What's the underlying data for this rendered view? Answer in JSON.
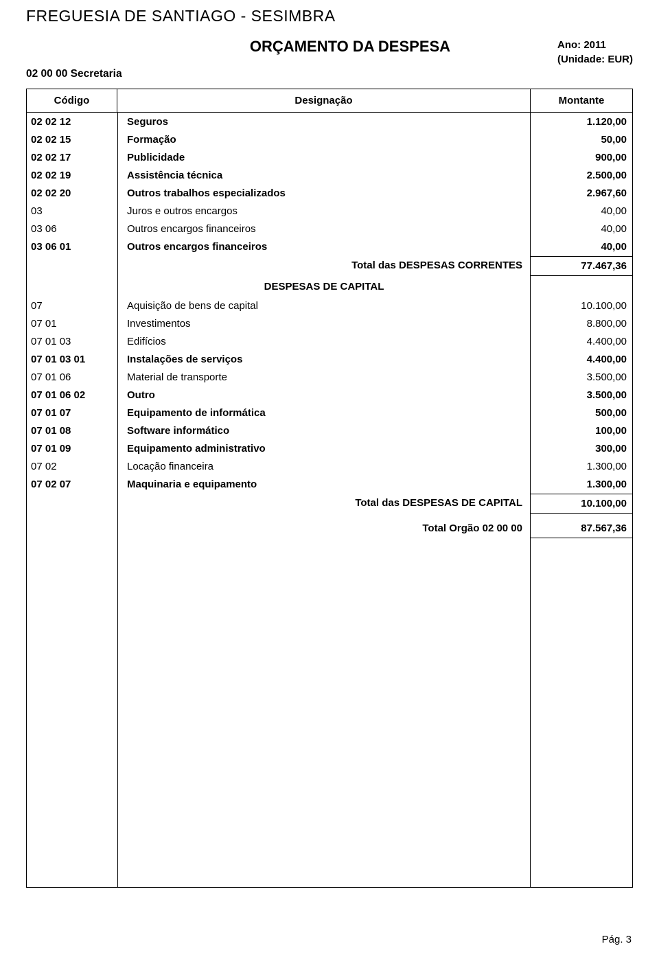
{
  "entity": "FREGUESIA DE SANTIAGO - SESIMBRA",
  "doc_title": "ORÇAMENTO DA DESPESA",
  "year_line": "Ano: 2011",
  "unit_line": "(Unidade: EUR)",
  "org_name": "02 00 00 Secretaria",
  "headers": {
    "code": "Código",
    "desc": "Designação",
    "amount": "Montante"
  },
  "rows": [
    {
      "code": "02 02 12",
      "desc": "Seguros",
      "amount": "1.120,00",
      "bold": true
    },
    {
      "code": "02 02 15",
      "desc": "Formação",
      "amount": "50,00",
      "bold": true
    },
    {
      "code": "02 02 17",
      "desc": "Publicidade",
      "amount": "900,00",
      "bold": true
    },
    {
      "code": "02 02 19",
      "desc": "Assistência técnica",
      "amount": "2.500,00",
      "bold": true
    },
    {
      "code": "02 02 20",
      "desc": "Outros trabalhos especializados",
      "amount": "2.967,60",
      "bold": true
    },
    {
      "code": "03",
      "desc": "Juros e outros encargos",
      "amount": "40,00",
      "bold": false
    },
    {
      "code": "03 06",
      "desc": "Outros encargos financeiros",
      "amount": "40,00",
      "bold": false
    },
    {
      "code": "03 06 01",
      "desc": "Outros encargos financeiros",
      "amount": "40,00",
      "bold": true
    }
  ],
  "total_correntes": {
    "label": "Total das  DESPESAS CORRENTES",
    "amount": "77.467,36"
  },
  "section_capital": "DESPESAS DE CAPITAL",
  "rows2": [
    {
      "code": "07",
      "desc": "Aquisição de bens de capital",
      "amount": "10.100,00",
      "bold": false
    },
    {
      "code": "07 01",
      "desc": "Investimentos",
      "amount": "8.800,00",
      "bold": false
    },
    {
      "code": "07 01 03",
      "desc": "Edifícios",
      "amount": "4.400,00",
      "bold": false
    },
    {
      "code": "07 01 03 01",
      "desc": "Instalações de serviços",
      "amount": "4.400,00",
      "bold": true
    },
    {
      "code": "07 01 06",
      "desc": "Material de transporte",
      "amount": "3.500,00",
      "bold": false
    },
    {
      "code": "07 01 06 02",
      "desc": "Outro",
      "amount": "3.500,00",
      "bold": true
    },
    {
      "code": "07 01 07",
      "desc": "Equipamento de informática",
      "amount": "500,00",
      "bold": true
    },
    {
      "code": "07 01 08",
      "desc": "Software informático",
      "amount": "100,00",
      "bold": true
    },
    {
      "code": "07 01 09",
      "desc": "Equipamento administrativo",
      "amount": "300,00",
      "bold": true
    },
    {
      "code": "07 02",
      "desc": "Locação financeira",
      "amount": "1.300,00",
      "bold": false
    },
    {
      "code": "07 02 07",
      "desc": "Maquinaria e equipamento",
      "amount": "1.300,00",
      "bold": true
    }
  ],
  "total_capital": {
    "label": "Total das  DESPESAS DE CAPITAL",
    "amount": "10.100,00"
  },
  "total_orgao": {
    "label": "Total Orgão 02 00 00",
    "amount": "87.567,36"
  },
  "page_num": "Pág. 3"
}
